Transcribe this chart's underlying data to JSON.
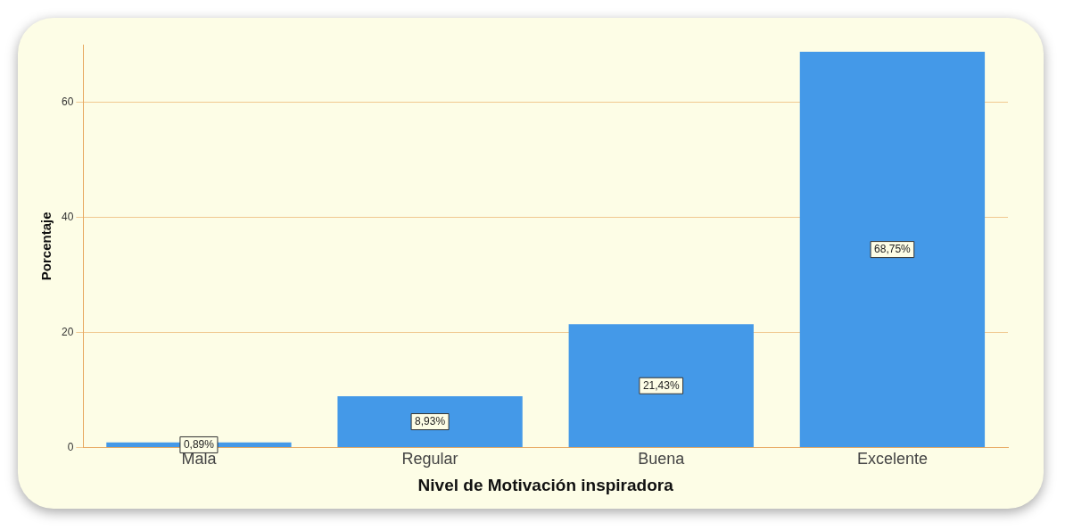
{
  "chart_data": {
    "type": "bar",
    "xlabel": "Nivel de Motivación inspiradora",
    "ylabel": "Porcentaje",
    "categories": [
      "Mala",
      "Regular",
      "Buena",
      "Excelente"
    ],
    "values": [
      0.89,
      8.93,
      21.43,
      68.75
    ],
    "value_labels": [
      "0,89%",
      "8,93%",
      "21,43%",
      "68,75%"
    ],
    "color": "#4499e8",
    "ylim": [
      0,
      70
    ],
    "yticks": [
      0,
      20,
      40,
      60
    ],
    "grid": "y",
    "legend": false
  }
}
